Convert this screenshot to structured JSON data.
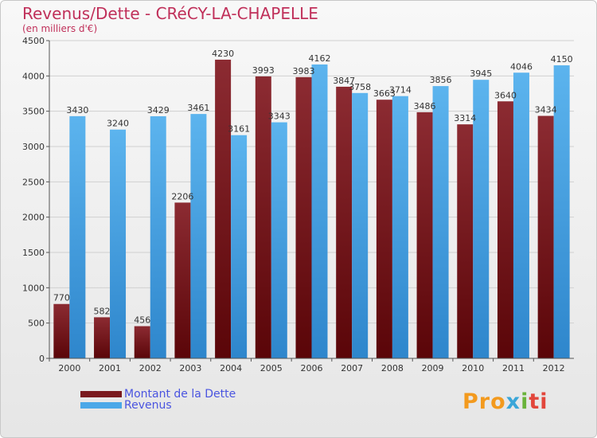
{
  "header": {
    "title": "Revenus/Dette - CRéCY-LA-CHAPELLE",
    "subtitle": "(en milliers d'€)"
  },
  "chart_data": {
    "type": "bar",
    "title": "Revenus/Dette - CRéCY-LA-CHAPELLE",
    "subtitle": "(en milliers d'€)",
    "xlabel": "",
    "ylabel": "",
    "ylim": [
      0,
      4500
    ],
    "yticks": [
      0,
      500,
      1000,
      1500,
      2000,
      2500,
      3000,
      3500,
      4000,
      4500
    ],
    "grid": true,
    "legend_position": "bottom-left",
    "categories": [
      "2000",
      "2001",
      "2002",
      "2003",
      "2004",
      "2005",
      "2006",
      "2007",
      "2008",
      "2009",
      "2010",
      "2011",
      "2012"
    ],
    "series": [
      {
        "name": "Montant de la Dette",
        "color": "#7a1a1e",
        "values": [
          770,
          582,
          456,
          2206,
          4230,
          3993,
          3983,
          3847,
          3663,
          3486,
          3314,
          3640,
          3434
        ]
      },
      {
        "name": "Revenus",
        "color": "#4ba8e8",
        "values": [
          3430,
          3240,
          3429,
          3461,
          3161,
          3343,
          4162,
          3758,
          3714,
          3856,
          3945,
          4046,
          4150
        ]
      }
    ]
  },
  "legend": {
    "items": [
      {
        "label": "Montant de la Dette",
        "color": "#7a1a1e"
      },
      {
        "label": "Revenus",
        "color": "#4ba8e8"
      }
    ]
  },
  "logo": {
    "parts": [
      "Pro",
      "x",
      "i",
      "ti"
    ]
  }
}
